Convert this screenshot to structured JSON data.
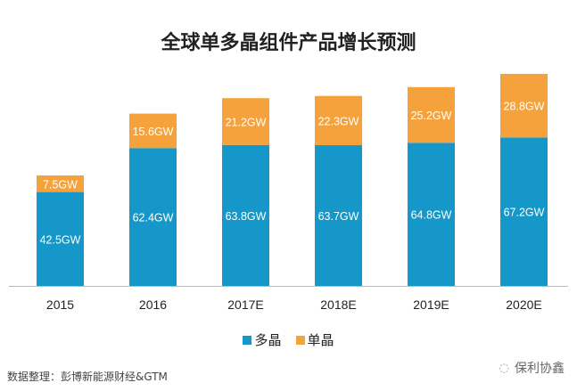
{
  "chart_data": {
    "type": "bar",
    "stacked": true,
    "title": "全球单多晶组件产品增长预测",
    "categories": [
      "2015",
      "2016",
      "2017E",
      "2018E",
      "2019E",
      "2020E"
    ],
    "series": [
      {
        "name": "多晶",
        "color": "#1598c9",
        "values": [
          42.5,
          62.4,
          63.8,
          63.7,
          64.8,
          67.2
        ],
        "labels": [
          "42.5GW",
          "62.4GW",
          "63.8GW",
          "63.7GW",
          "64.8GW",
          "67.2GW"
        ]
      },
      {
        "name": "单晶",
        "color": "#f5a23c",
        "values": [
          7.5,
          15.6,
          21.2,
          22.3,
          25.2,
          28.8
        ],
        "labels": [
          "7.5GW",
          "15.6GW",
          "21.2GW",
          "22.3GW",
          "25.2GW",
          "28.8GW"
        ]
      }
    ],
    "xlabel": "",
    "ylabel": "",
    "ylim": [
      0,
      100
    ],
    "grid": false,
    "legend_position": "bottom"
  },
  "source": "数据整理：彭博新能源财经&GTM",
  "watermark": "保利协鑫"
}
